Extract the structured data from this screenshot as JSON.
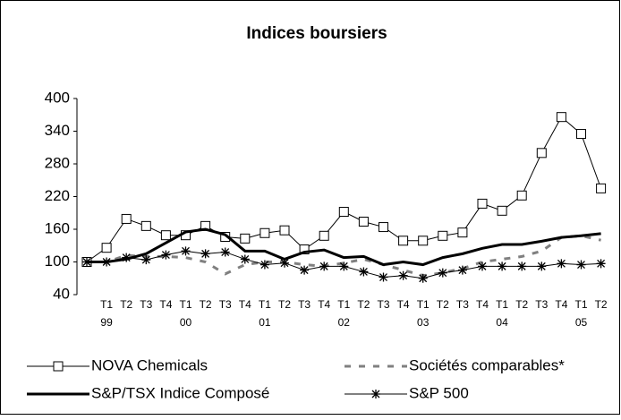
{
  "chart_data": {
    "type": "line",
    "title": "Indices boursiers",
    "categories": [
      null,
      "T1",
      "T2",
      "T3",
      "T4",
      "T1",
      "T2",
      "T3",
      "T4",
      "T1",
      "T2",
      "T3",
      "T4",
      "T1",
      "T2",
      "T3",
      "T4",
      "T1",
      "T2",
      "T3",
      "T4",
      "T1",
      "T2",
      "T3",
      "T4",
      "T1",
      "T2"
    ],
    "year_labels": [
      null,
      "99",
      null,
      null,
      null,
      "00",
      null,
      null,
      null,
      "01",
      null,
      null,
      null,
      "02",
      null,
      null,
      null,
      "03",
      null,
      null,
      null,
      "04",
      null,
      null,
      null,
      "05",
      null
    ],
    "series": [
      {
        "name": "NOVA Chemicals",
        "color": "#000000",
        "values": [
          100,
          126,
          179,
          166,
          149,
          149,
          166,
          146,
          143,
          153,
          158,
          123,
          148,
          192,
          174,
          164,
          139,
          139,
          148,
          154,
          207,
          194,
          222,
          300,
          366,
          335,
          235
        ]
      },
      {
        "name": "Sociétés comparables*",
        "color": "#808080",
        "values": [
          100,
          100,
          112,
          110,
          110,
          108,
          100,
          78,
          95,
          100,
          100,
          95,
          92,
          98,
          105,
          95,
          85,
          75,
          80,
          88,
          100,
          105,
          110,
          120,
          145,
          148,
          140
        ]
      },
      {
        "name": "S&P/TSX Indice Composé",
        "color": "#000000",
        "values": [
          100,
          100,
          105,
          115,
          135,
          155,
          160,
          150,
          120,
          120,
          105,
          118,
          122,
          108,
          110,
          95,
          100,
          95,
          108,
          115,
          125,
          132,
          132,
          138,
          145,
          148,
          152
        ]
      },
      {
        "name": "S&P 500",
        "color": "#000000",
        "values": [
          100,
          100,
          108,
          104,
          113,
          120,
          115,
          118,
          105,
          95,
          98,
          85,
          92,
          92,
          82,
          72,
          75,
          70,
          80,
          85,
          92,
          92,
          92,
          92,
          97,
          95,
          97
        ]
      }
    ],
    "ylim": [
      40,
      400
    ],
    "yticks": [
      40,
      100,
      160,
      220,
      280,
      340,
      400
    ],
    "grid": false
  }
}
